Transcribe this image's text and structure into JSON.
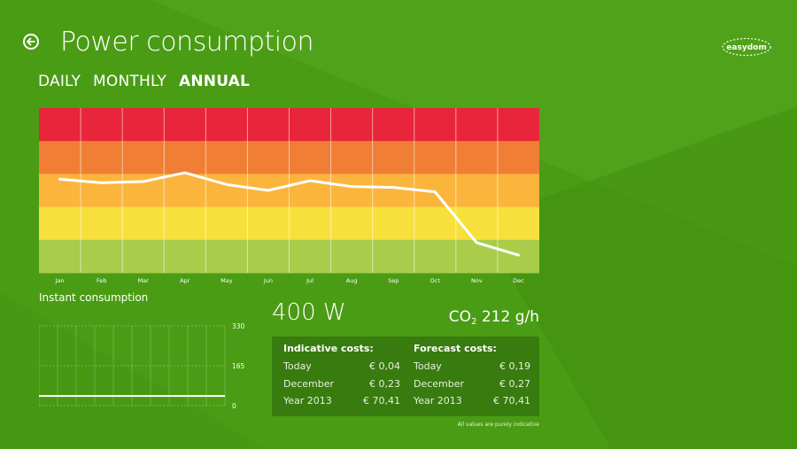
{
  "header": {
    "title": "Power consumption",
    "logo_text": "easydom"
  },
  "tabs": [
    {
      "label": "DAILY",
      "active": false
    },
    {
      "label": "MONTHLY",
      "active": false
    },
    {
      "label": "ANNUAL",
      "active": true
    }
  ],
  "icons": {
    "back": "back-arrow-icon",
    "logo": "easydom-logo"
  },
  "colors": {
    "background": "#4a9c14",
    "band_colors": [
      "#e8253a",
      "#f07f35",
      "#fbb53d",
      "#f8e03c",
      "#a9cc4b"
    ],
    "line": "#ffffff"
  },
  "chart_data": [
    {
      "type": "line",
      "categories": [
        "Jan",
        "Feb",
        "Mar",
        "Apr",
        "May",
        "Jun",
        "Jul",
        "Aug",
        "Sep",
        "Oct",
        "Nov",
        "Dec"
      ],
      "values": [
        2.58,
        2.46,
        2.5,
        2.8,
        2.4,
        2.2,
        2.53,
        2.33,
        2.3,
        2.15,
        0.42,
        0.0
      ],
      "ylim": [
        -0.6,
        5.0
      ],
      "bands": 5,
      "grid": "vertical"
    },
    {
      "type": "line",
      "title": "Instant consumption",
      "y_ticks": [
        {
          "value": 3300,
          "label": "3300"
        },
        {
          "value": 1650,
          "label": "1650"
        },
        {
          "value": 0,
          "label": "0"
        }
      ],
      "ylim": [
        0,
        3300
      ],
      "values": [
        400,
        400,
        400,
        400,
        400,
        400,
        400,
        400,
        400,
        400
      ],
      "grid": "both"
    }
  ],
  "summary": {
    "power": "400 W",
    "co2_label": "CO",
    "co2_sub": "2",
    "co2_value": "212 g/h"
  },
  "costs": {
    "indicative": {
      "heading": "Indicative costs:",
      "rows": [
        {
          "label": "Today",
          "value": "€ 0,04"
        },
        {
          "label": "December",
          "value": "€ 0,23"
        },
        {
          "label": "Year 2013",
          "value": "€ 70,41"
        }
      ]
    },
    "forecast": {
      "heading": "Forecast costs:",
      "rows": [
        {
          "label": "Today",
          "value": "€ 0,19"
        },
        {
          "label": "December",
          "value": "€ 0,27"
        },
        {
          "label": "Year 2013",
          "value": "€ 70,41"
        }
      ]
    },
    "note": "All values are purely indicative"
  }
}
